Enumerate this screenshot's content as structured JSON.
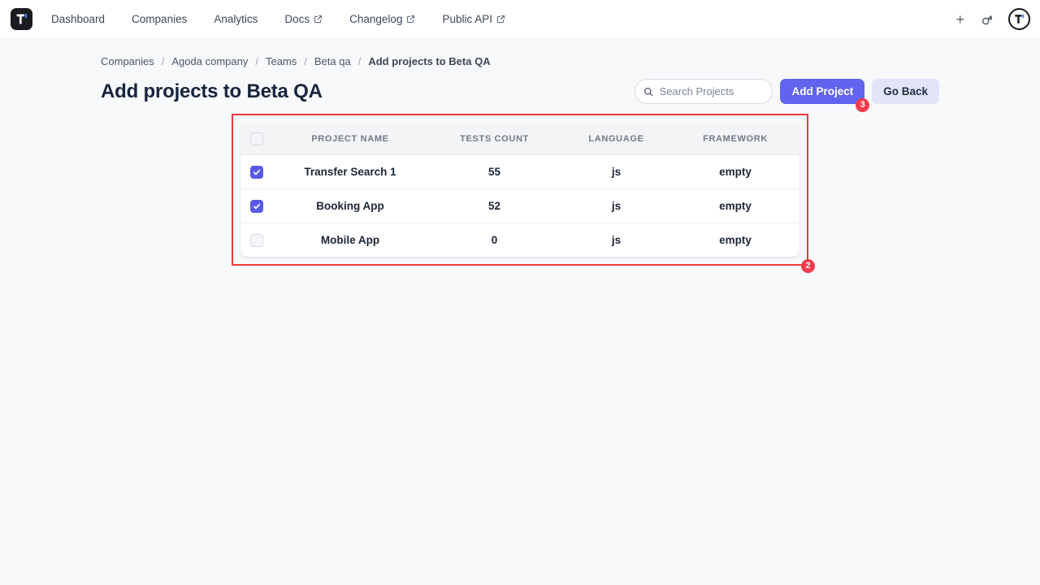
{
  "nav": {
    "brand": "T",
    "items": [
      {
        "label": "Dashboard",
        "external": false
      },
      {
        "label": "Companies",
        "external": false
      },
      {
        "label": "Analytics",
        "external": false
      },
      {
        "label": "Docs",
        "external": true
      },
      {
        "label": "Changelog",
        "external": true
      },
      {
        "label": "Public API",
        "external": true
      }
    ],
    "right": {
      "plus_glyph": "+"
    }
  },
  "breadcrumb": {
    "separator": "/",
    "items": [
      "Companies",
      "Agoda company",
      "Teams",
      "Beta qa",
      "Add projects to Beta QA"
    ]
  },
  "page": {
    "title": "Add projects to Beta QA"
  },
  "toolbar": {
    "search_placeholder": "Search Projects",
    "search_value": "",
    "add_project_label": "Add Project",
    "add_project_badge": "3",
    "go_back_label": "Go Back"
  },
  "table": {
    "annotation_badge": "2",
    "columns": [
      "PROJECT NAME",
      "TESTS COUNT",
      "LANGUAGE",
      "FRAMEWORK"
    ],
    "header_checkbox_checked": false,
    "rows": [
      {
        "checked": true,
        "name": "Transfer Search 1",
        "tests": "55",
        "language": "js",
        "framework": "empty"
      },
      {
        "checked": true,
        "name": "Booking App",
        "tests": "52",
        "language": "js",
        "framework": "empty"
      },
      {
        "checked": false,
        "name": "Mobile App",
        "tests": "0",
        "language": "js",
        "framework": "empty"
      }
    ]
  },
  "colors": {
    "accent": "#6164ee",
    "accent_light": "#e2e5fa",
    "annotation_red": "#ee3b3b",
    "badge_red": "#f23c4c",
    "checkbox_checked": "#585be8",
    "logo_blue": "#4f7df7",
    "page_bg": "#f8f9fb"
  }
}
